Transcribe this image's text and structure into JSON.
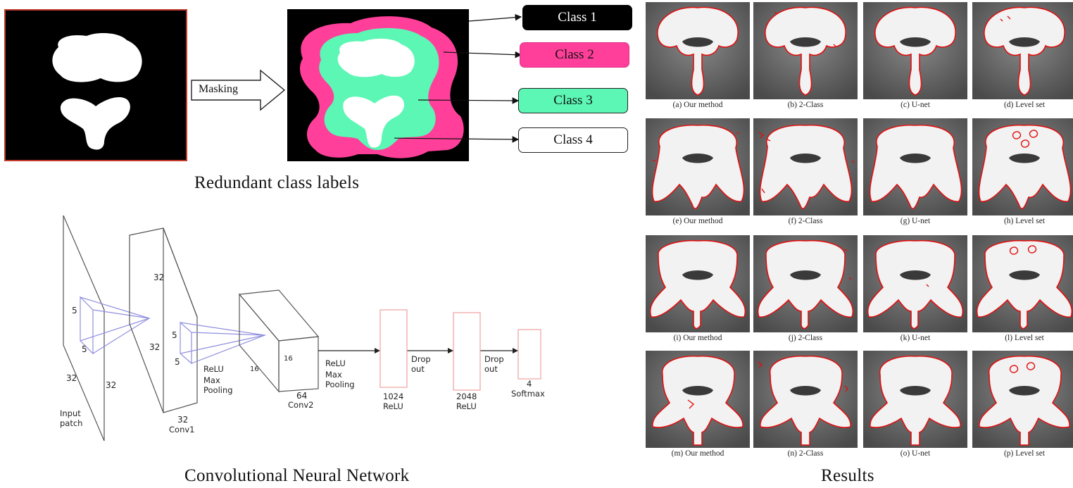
{
  "masking": {
    "arrow_label": "Masking",
    "classes": [
      {
        "label": "Class 1",
        "bg": "#000000",
        "fg": "#ffffff"
      },
      {
        "label": "Class 2",
        "bg": "#ff3f9a",
        "fg": "#111111"
      },
      {
        "label": "Class 3",
        "bg": "#5cf7b4",
        "fg": "#111111"
      },
      {
        "label": "Class 4",
        "bg": "#ffffff",
        "fg": "#111111"
      }
    ],
    "title": "Redundant class labels",
    "colors": {
      "class1": "#000000",
      "class2": "#ff3f9a",
      "class3": "#5cf7b4",
      "class4": "#ffffff",
      "frame": "#c0392b"
    }
  },
  "cnn": {
    "title": "Convolutional Neural Network",
    "input": {
      "w": "32",
      "h": "32",
      "name": "Input patch"
    },
    "kernel1": {
      "a": "5",
      "b": "5"
    },
    "conv1": {
      "size": "32",
      "size_side": "32",
      "depth": "32",
      "name": "Conv1",
      "act": "ReLU",
      "pool": "Max Pooling"
    },
    "kernel2": {
      "a": "5",
      "b": "5"
    },
    "conv2": {
      "size": "16",
      "size_side": "16",
      "depth": "64",
      "name": "Conv2",
      "act": "ReLU",
      "pool": "Max Pooling"
    },
    "fc1": {
      "units": "1024",
      "act": "ReLU",
      "after": "Drop out"
    },
    "fc2": {
      "units": "2048",
      "act": "ReLU",
      "after": "Drop out"
    },
    "out": {
      "units": "4",
      "act": "Softmax"
    }
  },
  "results": {
    "title": "Results",
    "captions": [
      "(a) Our method",
      "(b) 2-Class",
      "(c) U-net",
      "(d) Level set",
      "(e) Our method",
      "(f) 2-Class",
      "(g) U-net",
      "(h) Level set",
      "(i) Our method",
      "(j) 2-Class",
      "(k) U-net",
      "(l) Level set",
      "(m) Our method",
      "(n) 2-Class",
      "(o) U-net",
      "(p) Level set"
    ],
    "contour_color": "#e01010"
  }
}
